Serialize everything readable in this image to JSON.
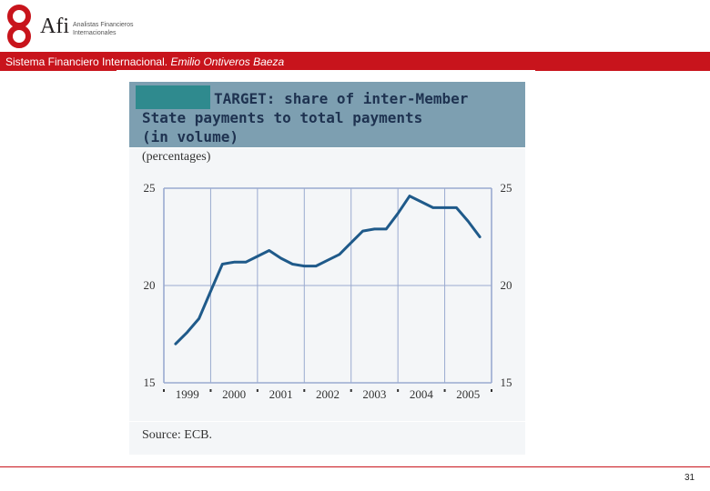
{
  "brand": {
    "logo_text": "Afi",
    "logo_line1": "Analistas Financieros",
    "logo_line2": "Internacionales",
    "primary_color": "#c8141c"
  },
  "header": {
    "course_title": "Sistema Financiero Internacional.",
    "author": "Emilio Ontiveros Baeza"
  },
  "figure": {
    "title_line1": "TARGET: share of inter-Member",
    "title_line2": "State payments to total payments",
    "title_line3": "(in volume)",
    "units": "(percentages)",
    "source": "Source: ECB.",
    "header_color": "#7d9fb1",
    "line_color": "#1f5a8a"
  },
  "chart_data": {
    "type": "line",
    "title": "TARGET: share of inter-Member State payments to total payments (in volume)",
    "ylabel": "(percentages)",
    "xlabel": "",
    "ylim": [
      15,
      25
    ],
    "xlim": [
      1998.5,
      2005.5
    ],
    "y_ticks": [
      15,
      20,
      25
    ],
    "x_tick_labels": [
      "1999",
      "2000",
      "2001",
      "2002",
      "2003",
      "2004",
      "2005"
    ],
    "grid": true,
    "series": [
      {
        "name": "Share of inter-Member State payments",
        "x": [
          1998.75,
          1999.0,
          1999.25,
          1999.5,
          1999.75,
          2000.0,
          2000.25,
          2000.5,
          2000.75,
          2001.0,
          2001.25,
          2001.5,
          2001.75,
          2002.0,
          2002.25,
          2002.5,
          2002.75,
          2003.0,
          2003.25,
          2003.5,
          2003.75,
          2004.0,
          2004.25,
          2004.5,
          2004.75,
          2005.0,
          2005.25
        ],
        "values": [
          17.0,
          17.6,
          18.3,
          19.7,
          21.1,
          21.2,
          21.2,
          21.5,
          21.8,
          21.4,
          21.1,
          21.0,
          21.0,
          21.3,
          21.6,
          22.2,
          22.8,
          22.9,
          22.9,
          23.7,
          24.6,
          24.3,
          24.0,
          24.0,
          24.0,
          23.3,
          22.5
        ]
      }
    ]
  },
  "footer": {
    "page_number": "31"
  }
}
